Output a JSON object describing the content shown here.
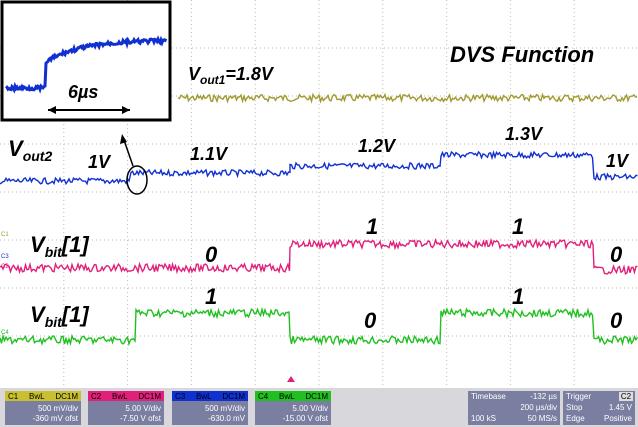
{
  "screen": {
    "title": "DVS Function",
    "inset": {
      "label": "6µs"
    },
    "vout1": {
      "base": "V",
      "sub": "out1",
      "rest": "=1.8V"
    },
    "vout2": {
      "base": "V",
      "sub": "out2",
      "levels": [
        "1V",
        "1.1V",
        "1.2V",
        "1.3V",
        "1V"
      ]
    },
    "vbit_a": {
      "base": "V",
      "sub": "bit",
      "rest": "[1]",
      "levels": [
        "0",
        "1",
        "1",
        "0"
      ]
    },
    "vbit_b": {
      "base": "V",
      "sub": "bit",
      "rest": "[1]",
      "levels": [
        "1",
        "0",
        "1",
        "0"
      ]
    },
    "channel_markers": [
      "C1",
      "C3",
      "C2",
      "C4"
    ]
  },
  "status_bar": {
    "channels": [
      {
        "name": "C1",
        "flags": "BwL",
        "coupling": "DC1M",
        "scale": "500 mV/div",
        "offset": "-360 mV ofst"
      },
      {
        "name": "C2",
        "flags": "BwL",
        "coupling": "DC1M",
        "scale": "5.00 V/div",
        "offset": "-7.50 V ofst"
      },
      {
        "name": "C3",
        "flags": "BwL",
        "coupling": "DC1M",
        "scale": "500 mV/div",
        "offset": "-630.0 mV"
      },
      {
        "name": "C4",
        "flags": "BwL",
        "coupling": "DC1M",
        "scale": "5.00 V/div",
        "offset": "-15.00 V ofst"
      }
    ],
    "timebase": {
      "label": "Timebase",
      "delay": "-132 µs",
      "scale": "200 µs/div",
      "samples": "100 kS",
      "rate": "50 MS/s"
    },
    "trigger": {
      "label": "Trigger",
      "source": "C2",
      "mode": "Stop",
      "level": "1.45 V",
      "type": "Edge",
      "slope": "Positive"
    }
  }
}
